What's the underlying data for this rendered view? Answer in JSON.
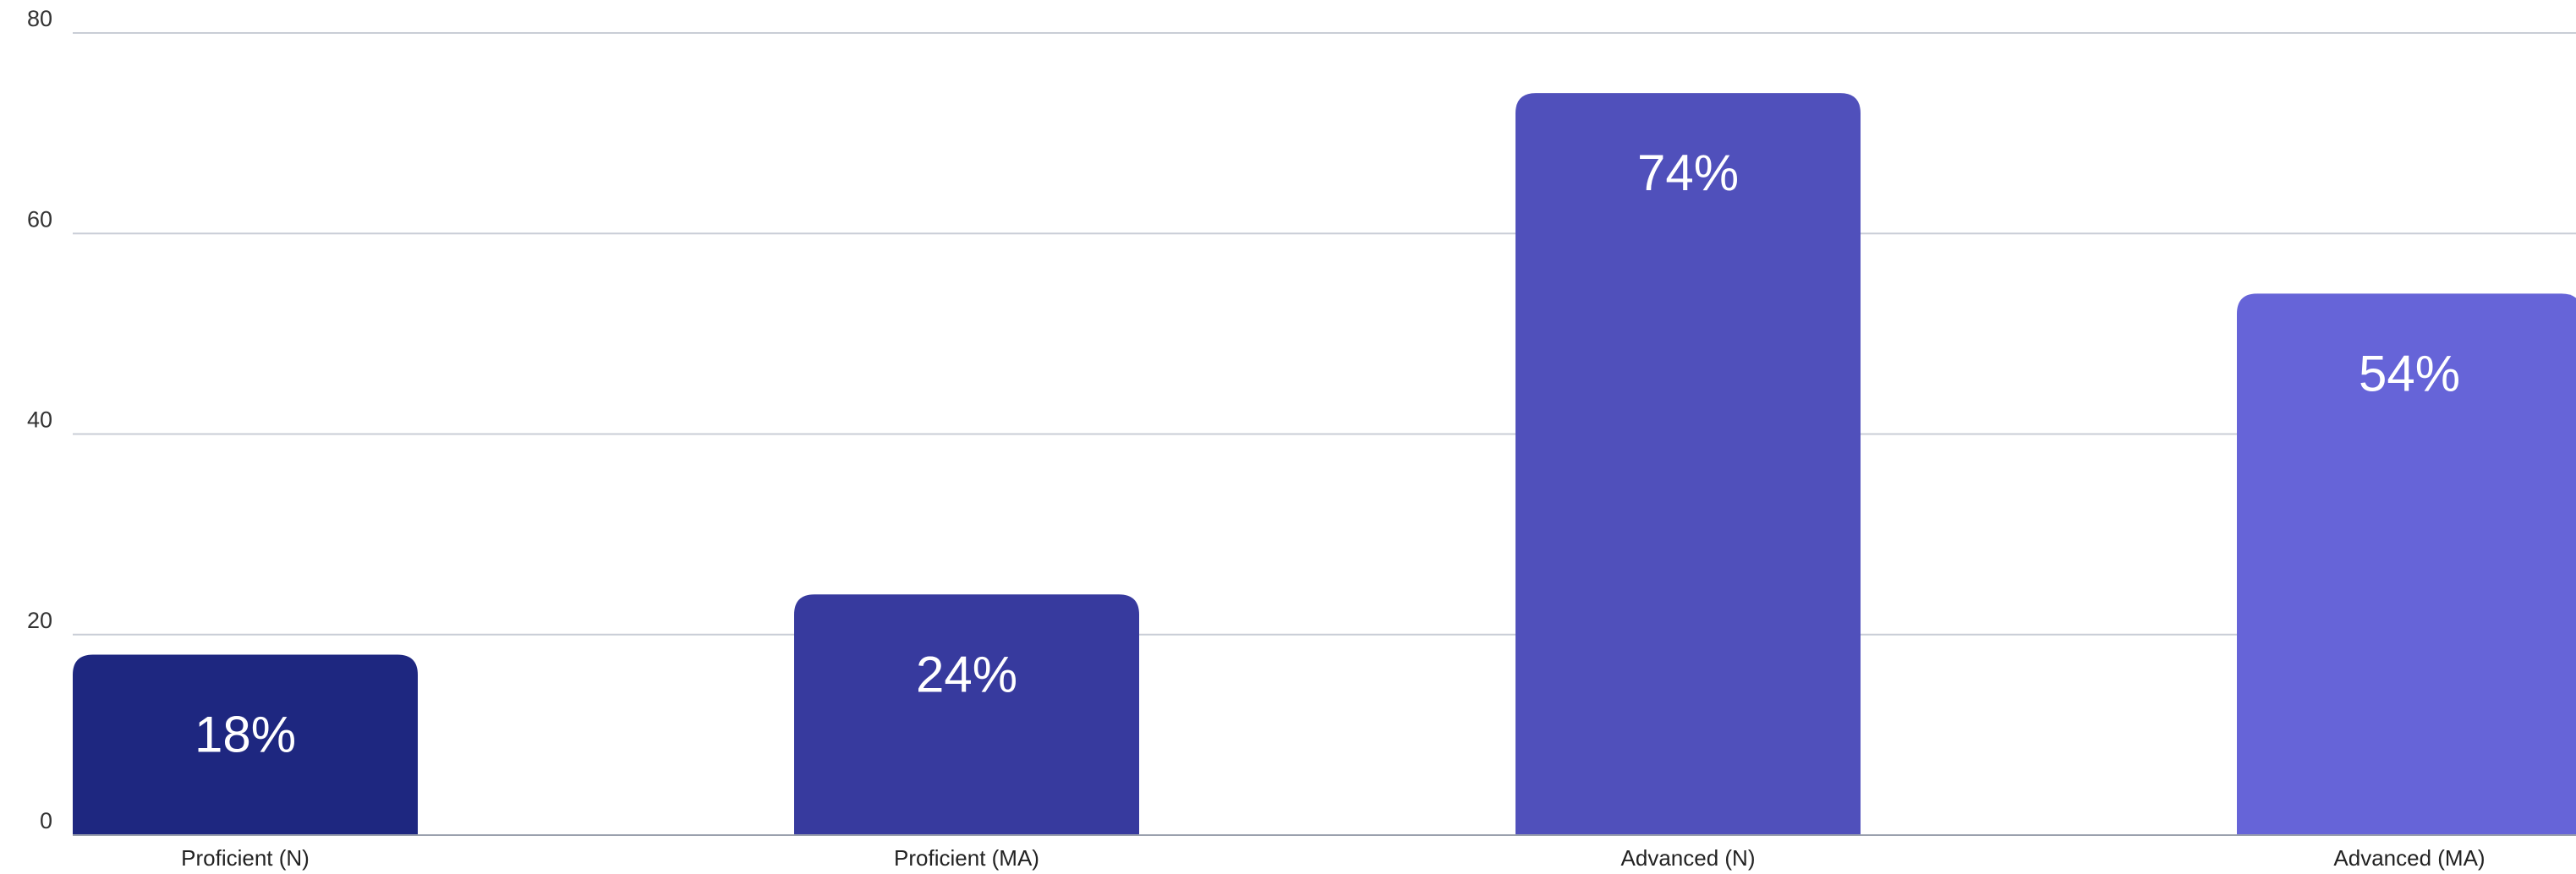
{
  "chart_data": {
    "type": "bar",
    "title": "",
    "xlabel": "",
    "ylabel": "",
    "categories": [
      "Proficient (N)",
      "Proficient (MA)",
      "Advanced (N)",
      "Advanced (MA)"
    ],
    "values": [
      18,
      24,
      74,
      54
    ],
    "data_labels": [
      "18%",
      "24%",
      "74%",
      "54%"
    ],
    "bar_colors": [
      "#1e2780",
      "#373a9e",
      "#5050bb",
      "#6664d8"
    ],
    "ylim": [
      0,
      80
    ],
    "yticks": [
      0,
      20,
      40,
      60,
      80
    ],
    "grid": true,
    "legend": "none"
  }
}
